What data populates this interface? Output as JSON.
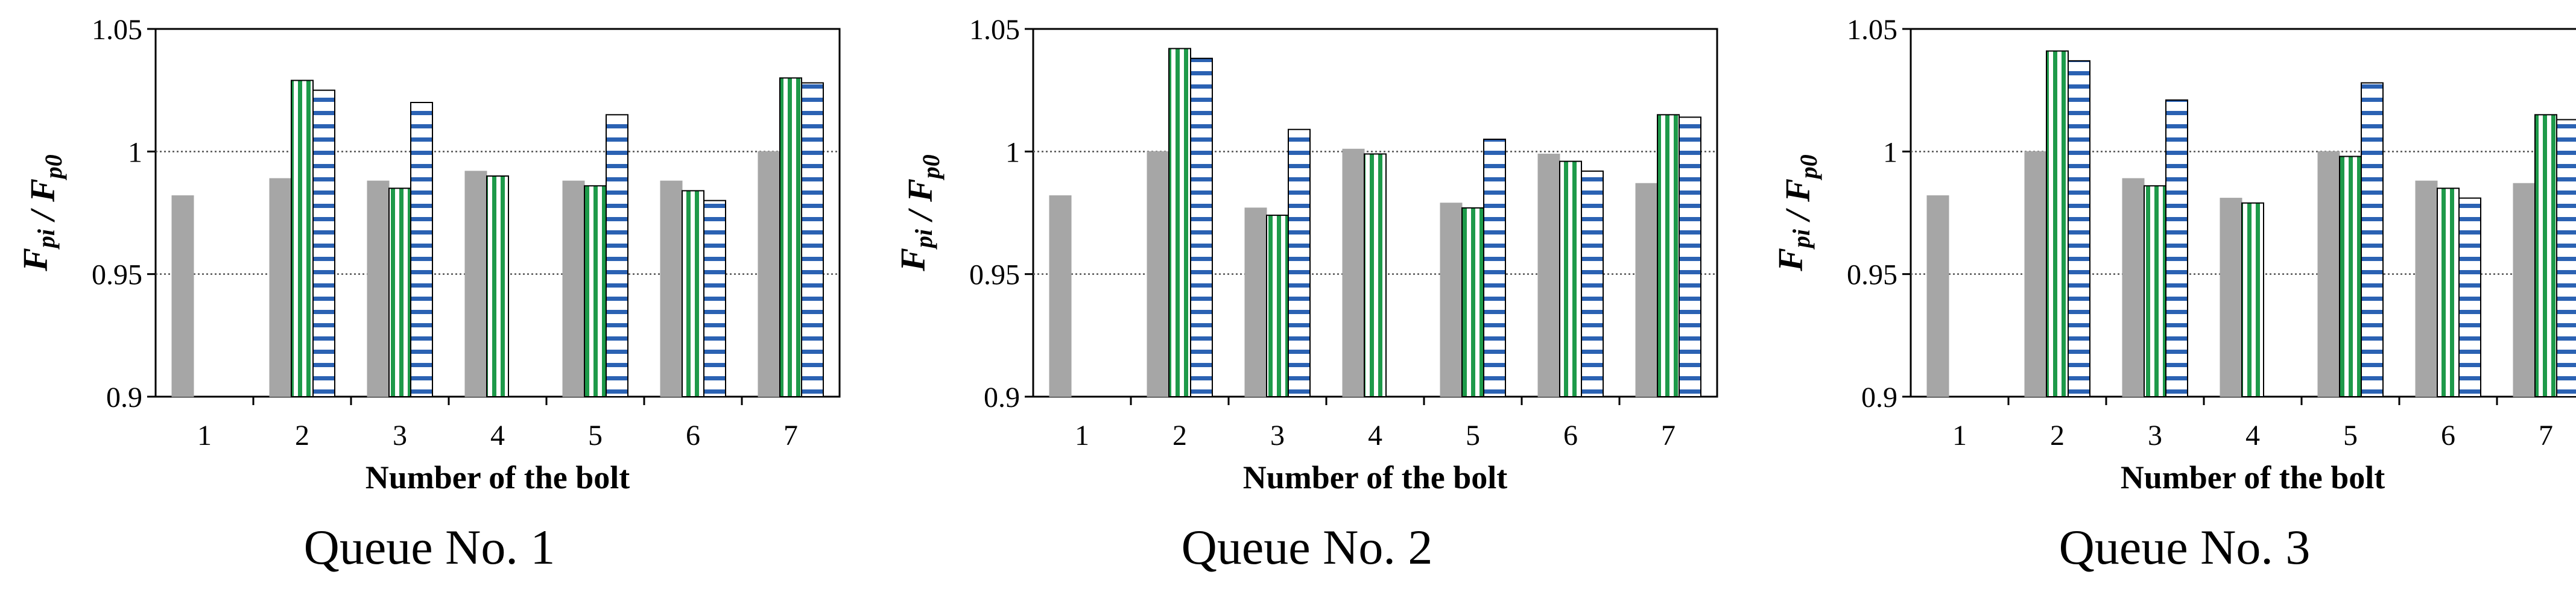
{
  "chart_data": [
    {
      "type": "bar",
      "categories": [
        "1",
        "2",
        "3",
        "4",
        "5",
        "6",
        "7"
      ],
      "series": [
        {
          "values": [
            0.982,
            0.989,
            0.988,
            0.992,
            0.988,
            0.988,
            1.0
          ]
        },
        {
          "values": [
            null,
            1.029,
            0.985,
            0.99,
            0.986,
            0.984,
            1.03
          ]
        },
        {
          "values": [
            null,
            1.025,
            1.02,
            null,
            1.015,
            0.98,
            1.028
          ]
        }
      ],
      "title": "Queue No. 1",
      "xlabel": "Number of the bolt",
      "ylabel": "Fpi / Fp0",
      "ylim": [
        0.9,
        1.05
      ],
      "yticks": [
        "0.9",
        "0.95",
        "1",
        "1.05"
      ],
      "grid": "horizontal dotted at 0.95 and 1"
    },
    {
      "type": "bar",
      "categories": [
        "1",
        "2",
        "3",
        "4",
        "5",
        "6",
        "7"
      ],
      "series": [
        {
          "values": [
            0.982,
            1.0,
            0.977,
            1.001,
            0.979,
            0.999,
            0.987
          ]
        },
        {
          "values": [
            null,
            1.042,
            0.974,
            0.999,
            0.977,
            0.996,
            1.015
          ]
        },
        {
          "values": [
            null,
            1.038,
            1.009,
            null,
            1.005,
            0.992,
            1.014
          ]
        }
      ],
      "title": "Queue No. 2",
      "xlabel": "Number of the bolt",
      "ylabel": "Fpi / Fp0",
      "ylim": [
        0.9,
        1.05
      ],
      "yticks": [
        "0.9",
        "0.95",
        "1",
        "1.05"
      ],
      "grid": "horizontal dotted at 0.95 and 1"
    },
    {
      "type": "bar",
      "categories": [
        "1",
        "2",
        "3",
        "4",
        "5",
        "6",
        "7"
      ],
      "series": [
        {
          "values": [
            0.982,
            1.0,
            0.989,
            0.981,
            1.0,
            0.988,
            0.987
          ]
        },
        {
          "values": [
            null,
            1.041,
            0.986,
            0.979,
            0.998,
            0.985,
            1.015
          ]
        },
        {
          "values": [
            null,
            1.037,
            1.021,
            null,
            1.028,
            0.981,
            1.013
          ]
        }
      ],
      "title": "Queue No. 3",
      "xlabel": "Number of the bolt",
      "ylabel": "Fpi / Fp0",
      "ylim": [
        0.9,
        1.05
      ],
      "yticks": [
        "0.9",
        "0.95",
        "1",
        "1.05"
      ],
      "grid": "horizontal dotted at 0.95 and 1"
    }
  ],
  "colors": {
    "series1_fill": "#a6a6a6",
    "series2_stripe": "#1e9a4a",
    "series3_stripe": "#2b62b3",
    "axis": "#000000",
    "grid": "#555555"
  }
}
